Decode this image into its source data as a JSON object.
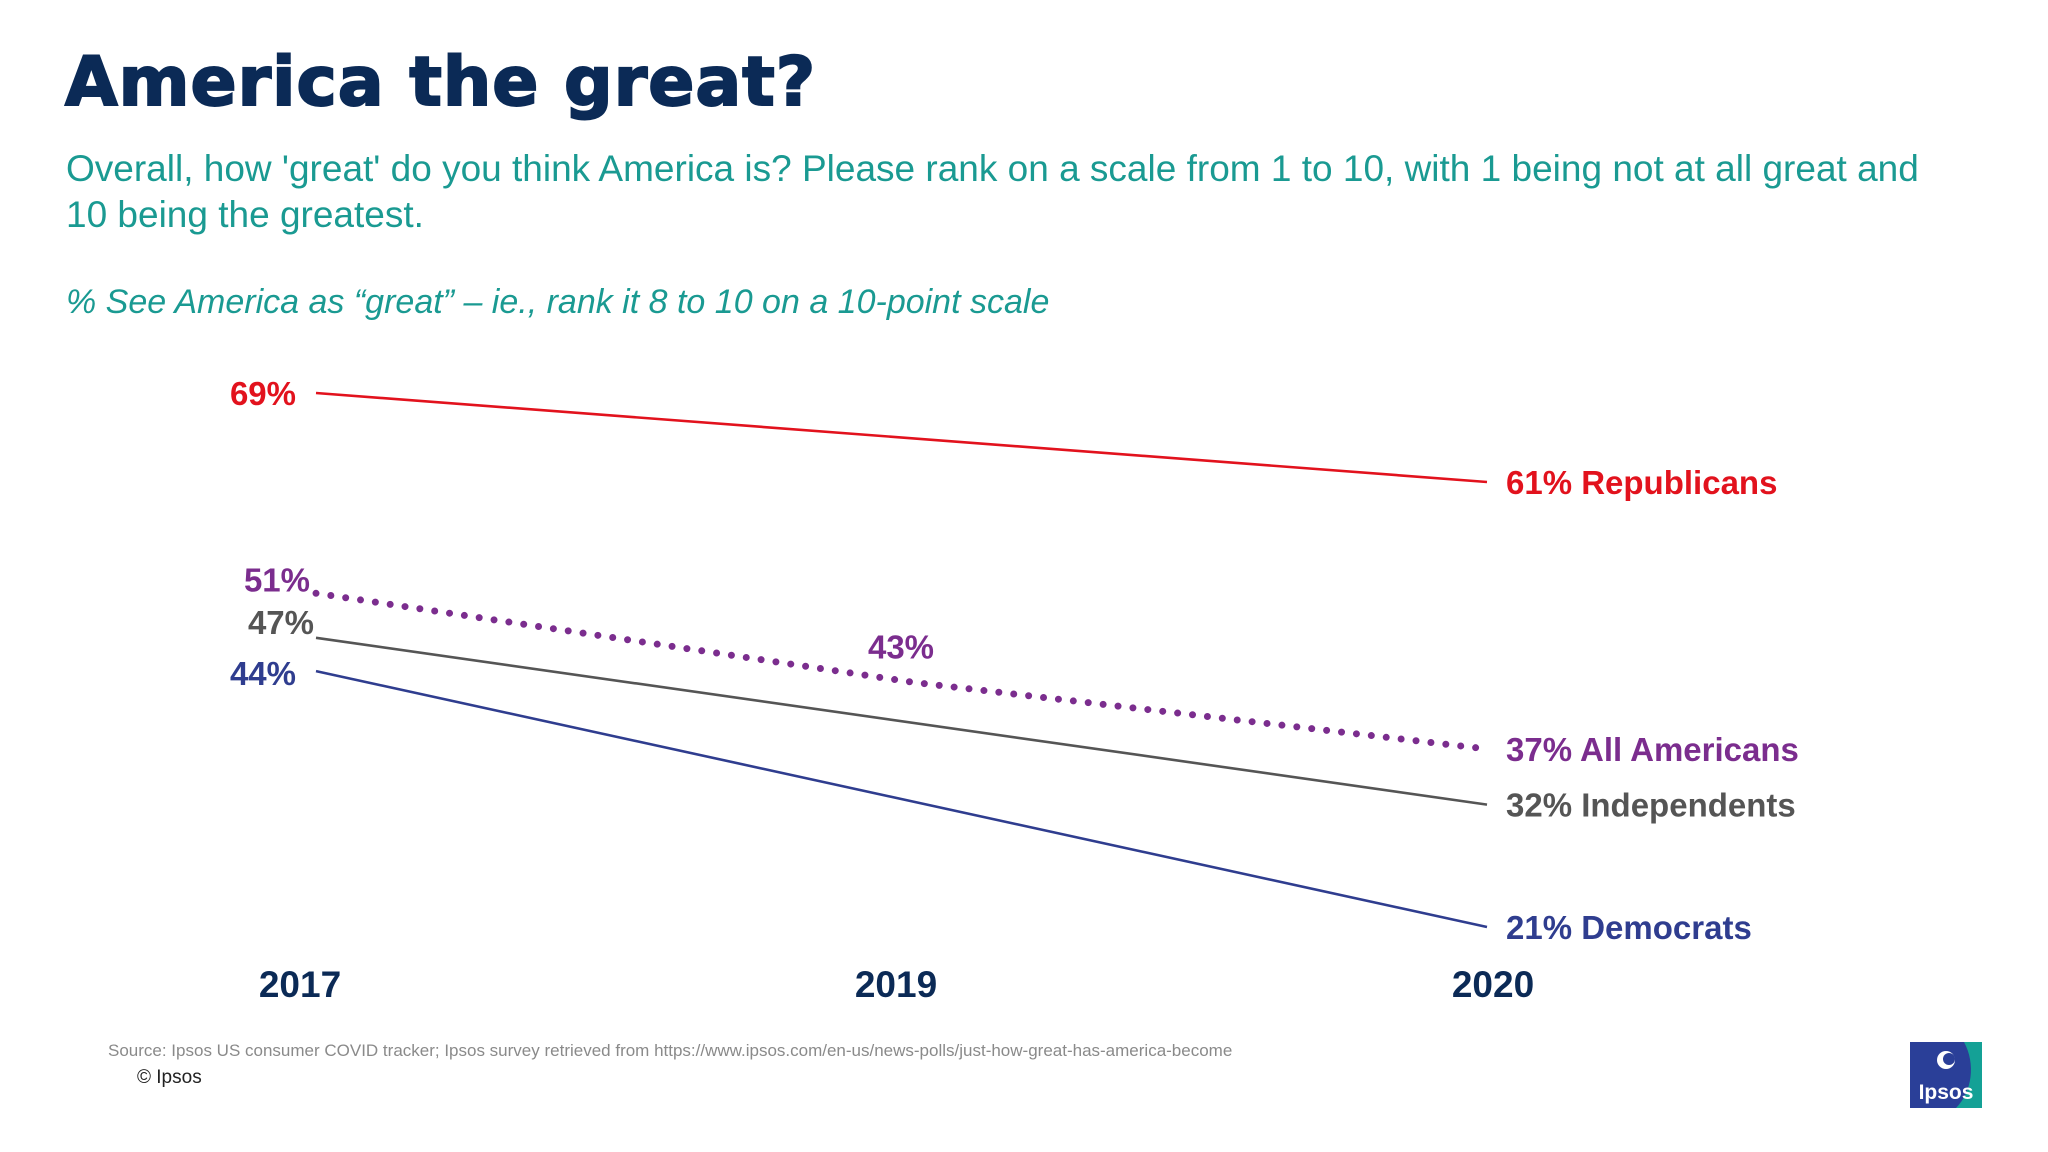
{
  "title": "America the great?",
  "subtitle": "Overall, how 'great' do you think America is? Please rank on a scale from 1 to 10, with 1 being not at all great and 10 being the greatest.",
  "note": "% See America as “great” – ie., rank it 8 to 10 on a 10-point scale",
  "source": "Source: Ipsos US consumer COVID tracker; Ipsos survey retrieved from https://www.ipsos.com/en-us/news-polls/just-how-great-has-america-become",
  "copyright": "© Ipsos",
  "logo_text": "Ipsos",
  "colors": {
    "title": "#0b2a56",
    "accent": "#1a9a92",
    "axis_labels": "#0b2a56"
  },
  "chart_data": {
    "type": "line",
    "x": [
      "2017",
      "2019",
      "2020"
    ],
    "ylim": [
      15,
      75
    ],
    "grid": false,
    "legend": "direct labels at line ends",
    "series": [
      {
        "name": "Republicans",
        "x": [
          "2017",
          "2020"
        ],
        "values": [
          69,
          61
        ],
        "labels": [
          "69%",
          "61%"
        ],
        "color": "#e2121d",
        "style": "solid"
      },
      {
        "name": "All Americans",
        "x": [
          "2017",
          "2019",
          "2020"
        ],
        "values": [
          51,
          43,
          37
        ],
        "labels": [
          "51%",
          "43%",
          "37%"
        ],
        "color": "#7b2d8e",
        "style": "dotted"
      },
      {
        "name": "Independents",
        "x": [
          "2017",
          "2020"
        ],
        "values": [
          47,
          32
        ],
        "labels": [
          "47%",
          "32%"
        ],
        "color": "#555555",
        "style": "solid"
      },
      {
        "name": "Democrats",
        "x": [
          "2017",
          "2020"
        ],
        "values": [
          44,
          21
        ],
        "labels": [
          "44%",
          "21%"
        ],
        "color": "#2f3d8f",
        "style": "solid"
      }
    ]
  }
}
